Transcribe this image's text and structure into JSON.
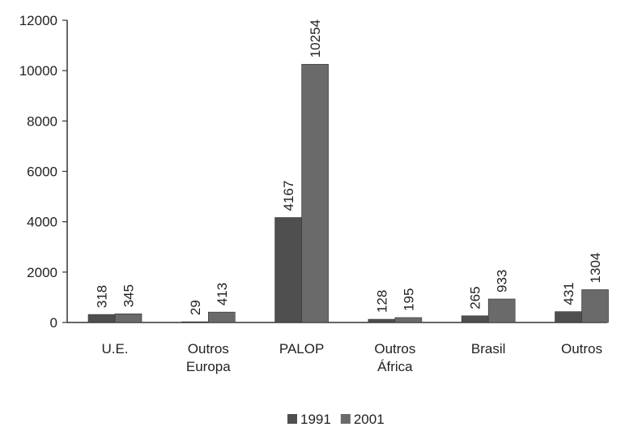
{
  "chart_data": {
    "type": "bar",
    "categories": [
      "U.E.",
      "Outros Europa",
      "PALOP",
      "Outros África",
      "Brasil",
      "Outros"
    ],
    "series": [
      {
        "name": "1991",
        "color": "#4f4f4f",
        "values": [
          318,
          29,
          4167,
          128,
          265,
          431
        ]
      },
      {
        "name": "2001",
        "color": "#6a6a6a",
        "values": [
          345,
          413,
          10254,
          195,
          933,
          1304
        ]
      }
    ],
    "ylim": [
      0,
      12000
    ],
    "yticks": [
      0,
      2000,
      4000,
      6000,
      8000,
      10000,
      12000
    ],
    "legend": "bottom"
  }
}
